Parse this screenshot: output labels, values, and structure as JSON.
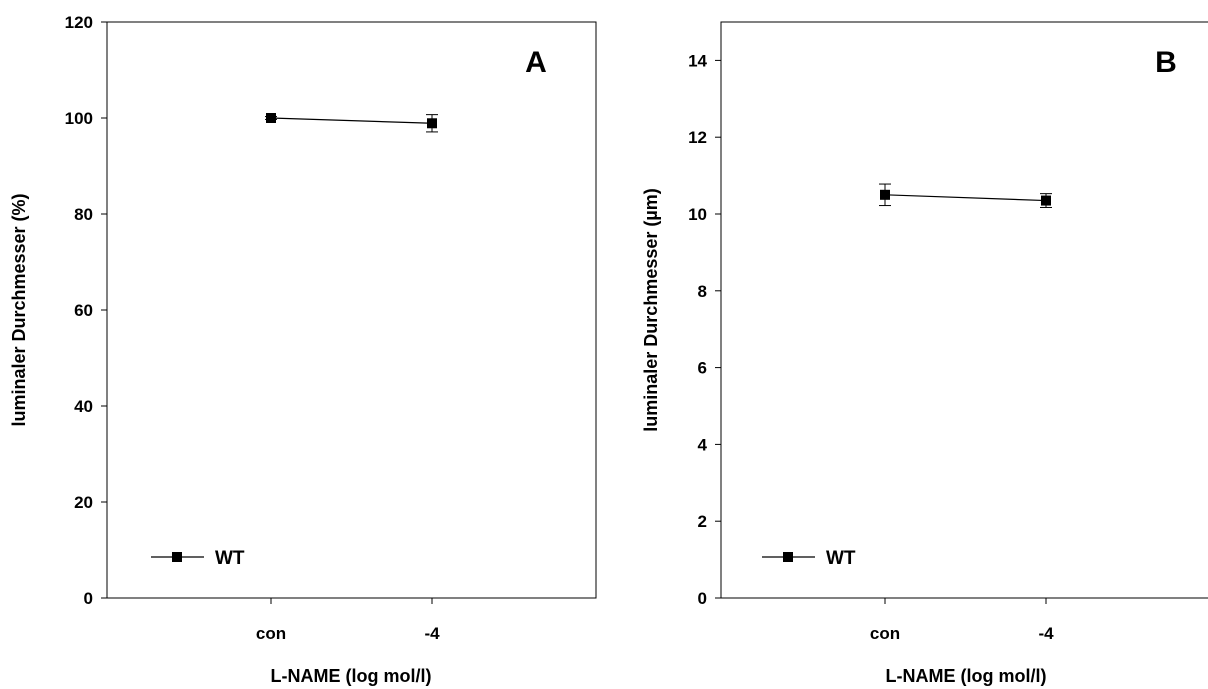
{
  "chart_data": [
    {
      "type": "line",
      "panel_label": "A",
      "ylabel": "luminaler Durchmesser (%)",
      "xlabel": "L-NAME (log mol/l)",
      "categories": [
        "con",
        "-4"
      ],
      "ylim": [
        0,
        120
      ],
      "yticks": [
        0,
        20,
        40,
        60,
        80,
        100,
        120
      ],
      "grid": false,
      "legend_position": "bottom-left",
      "series": [
        {
          "name": "WT",
          "values": [
            100,
            98.9
          ],
          "errors": [
            0.3,
            1.8
          ],
          "color": "#000000",
          "marker": "square"
        }
      ]
    },
    {
      "type": "line",
      "panel_label": "B",
      "ylabel": "luminaler Durchmesser (µm)",
      "xlabel": "L-NAME (log mol/l)",
      "categories": [
        "con",
        "-4"
      ],
      "ylim": [
        0,
        15
      ],
      "yticks": [
        0,
        2,
        4,
        6,
        8,
        10,
        12,
        14
      ],
      "grid": false,
      "legend_position": "bottom-left",
      "series": [
        {
          "name": "WT",
          "values": [
            10.5,
            10.35
          ],
          "errors": [
            0.28,
            0.18
          ],
          "color": "#000000",
          "marker": "square"
        }
      ]
    }
  ]
}
